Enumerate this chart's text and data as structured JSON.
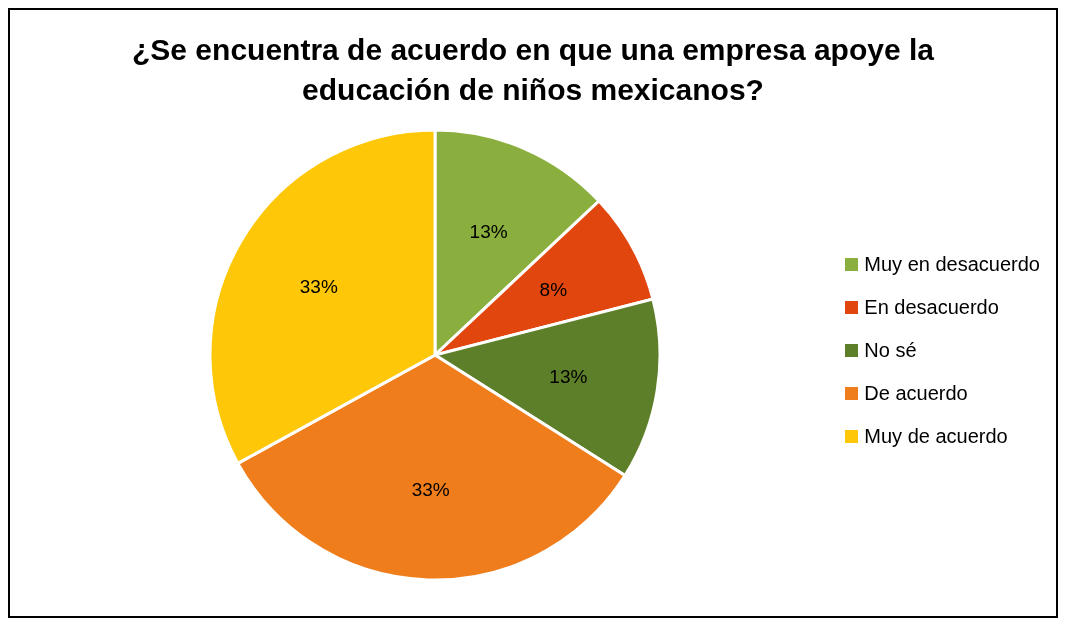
{
  "chart_data": {
    "type": "pie",
    "title": "¿Se encuentra de acuerdo en que una empresa apoye la educación de niños mexicanos?",
    "categories": [
      "Muy en desacuerdo",
      "En desacuerdo",
      "No sé",
      "De acuerdo",
      "Muy de acuerdo"
    ],
    "values": [
      13,
      8,
      13,
      33,
      33
    ],
    "colors": [
      "#8aaf3e",
      "#e2460f",
      "#5e7f2a",
      "#f07d1b",
      "#fec707"
    ],
    "value_labels": [
      "13%",
      "8%",
      "13%",
      "33%",
      "33%"
    ],
    "legend": "right"
  }
}
